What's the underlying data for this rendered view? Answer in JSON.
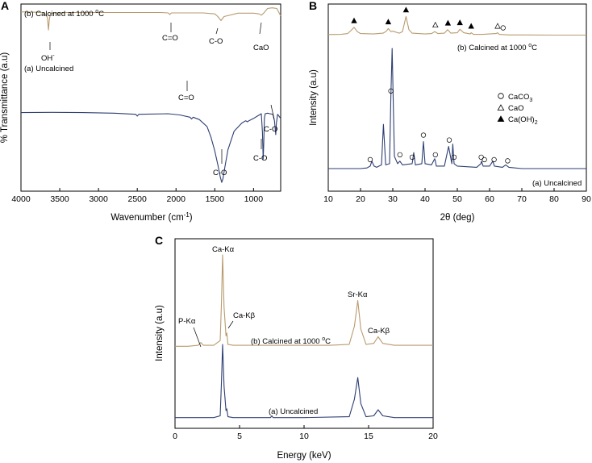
{
  "colors": {
    "calcined": "#b89b6e",
    "uncalcined": "#2e3f73"
  },
  "chart_data": [
    {
      "panel": "A",
      "type": "line",
      "xlabel": "Wavenumber (cm",
      "xlabel_sup": "-1",
      "xlabel_end": ")",
      "ylabel": "% Transmittance (a.u)",
      "xlim": [
        4000,
        650
      ],
      "x_reversed": true,
      "ylim": [
        0,
        1
      ],
      "xticks": [
        4000,
        3500,
        3000,
        2500,
        2000,
        1500,
        1000
      ],
      "yticks_shown": false,
      "series": [
        {
          "name": "(b) Calcined at 1000 ",
          "name_sup": "o",
          "name_end": "C",
          "color": "calcined",
          "x": [
            4000,
            3800,
            3700,
            3660,
            3645,
            3635,
            3620,
            3580,
            3400,
            3000,
            2600,
            2200,
            2100,
            2080,
            2060,
            1900,
            1650,
            1500,
            1460,
            1420,
            1380,
            1200,
            1000,
            930,
            900,
            870,
            820,
            760,
            700,
            650
          ],
          "y": [
            0.96,
            0.957,
            0.952,
            0.92,
            0.825,
            0.9,
            0.945,
            0.952,
            0.955,
            0.955,
            0.955,
            0.955,
            0.952,
            0.94,
            0.952,
            0.952,
            0.952,
            0.945,
            0.925,
            0.895,
            0.925,
            0.95,
            0.95,
            0.945,
            0.935,
            0.95,
            0.985,
            0.99,
            0.985,
            0.93
          ]
        },
        {
          "name": "(a) Uncalcined",
          "color": "uncalcined",
          "x": [
            4000,
            3600,
            3200,
            2800,
            2520,
            2500,
            2480,
            2100,
            1950,
            1820,
            1800,
            1780,
            1700,
            1600,
            1550,
            1500,
            1460,
            1430,
            1410,
            1395,
            1370,
            1330,
            1250,
            1150,
            1100,
            1080,
            1060,
            1000,
            950,
            900,
            885,
            876,
            868,
            860,
            850,
            820,
            790,
            750,
            730,
            713,
            705,
            690,
            650
          ],
          "y": [
            0.67,
            0.672,
            0.67,
            0.665,
            0.655,
            0.64,
            0.655,
            0.66,
            0.65,
            0.63,
            0.615,
            0.63,
            0.61,
            0.55,
            0.46,
            0.34,
            0.22,
            0.12,
            0.07,
            0.1,
            0.2,
            0.35,
            0.51,
            0.58,
            0.6,
            0.59,
            0.6,
            0.62,
            0.64,
            0.66,
            0.5,
            0.27,
            0.4,
            0.62,
            0.66,
            0.665,
            0.66,
            0.655,
            0.6,
            0.48,
            0.58,
            0.655,
            0.62
          ]
        }
      ],
      "annotations": [
        {
          "text": "OH",
          "sup": "-",
          "x": 3650
        },
        {
          "text": "C=O",
          "x": 2050
        },
        {
          "text": "C-O",
          "x": 1440
        },
        {
          "text": "CaO",
          "x": 870
        },
        {
          "text": "C=O",
          "x": 1800
        },
        {
          "text": "C-O",
          "x": 1400
        },
        {
          "text": "C-O",
          "x": 876
        },
        {
          "text": "C-O",
          "x": 713
        }
      ]
    },
    {
      "panel": "B",
      "type": "line",
      "xlabel": "2θ (deg)",
      "ylabel": "Intensity (a.u)",
      "xlim": [
        10,
        90
      ],
      "xticks": [
        10,
        20,
        30,
        40,
        50,
        60,
        70,
        80,
        90
      ],
      "yticks_shown": false,
      "series": [
        {
          "name": "(b) Calcined at 1000 ",
          "name_sup": "o",
          "name_end": "C",
          "color": "calcined",
          "x": [
            10,
            14,
            16,
            17,
            18,
            19,
            20,
            24,
            27,
            28,
            28.6,
            29.4,
            30,
            32,
            33,
            34.1,
            35,
            36,
            40,
            42,
            43,
            44,
            46,
            47,
            48,
            50,
            50.8,
            52,
            54,
            54.3,
            55,
            58,
            62,
            62.5,
            63,
            66,
            70,
            80,
            90
          ],
          "y": [
            0.05,
            0.06,
            0.1,
            0.25,
            0.42,
            0.2,
            0.1,
            0.08,
            0.12,
            0.22,
            0.36,
            0.2,
            0.22,
            0.12,
            0.2,
            0.98,
            0.3,
            0.12,
            0.08,
            0.1,
            0.2,
            0.1,
            0.12,
            0.3,
            0.12,
            0.14,
            0.32,
            0.14,
            0.08,
            0.14,
            0.06,
            0.06,
            0.1,
            0.14,
            0.06,
            0.03,
            0.03,
            0.02,
            0.02
          ]
        },
        {
          "name": "(a) Uncalcined",
          "color": "uncalcined",
          "x": [
            10,
            20,
            22,
            23,
            23.5,
            24.2,
            25,
            26.5,
            27.1,
            27.8,
            29,
            29.4,
            29.8,
            30.5,
            31.5,
            32.2,
            33,
            36,
            36.5,
            37,
            39,
            39.5,
            40,
            42,
            43,
            43.2,
            43.5,
            46,
            47.3,
            48.3,
            48.6,
            49,
            50,
            56,
            57.3,
            57.5,
            58,
            60,
            61,
            61.5,
            64,
            65,
            66,
            70,
            80,
            90
          ],
          "y": [
            0.02,
            0.02,
            0.025,
            0.04,
            0.08,
            0.04,
            0.03,
            0.05,
            0.38,
            0.05,
            0.06,
            0.6,
            1.0,
            0.12,
            0.06,
            0.08,
            0.05,
            0.06,
            0.15,
            0.05,
            0.06,
            0.24,
            0.06,
            0.05,
            0.1,
            0.08,
            0.04,
            0.04,
            0.2,
            0.06,
            0.22,
            0.06,
            0.04,
            0.03,
            0.06,
            0.08,
            0.04,
            0.04,
            0.08,
            0.04,
            0.03,
            0.05,
            0.03,
            0.02,
            0.02,
            0.02
          ]
        }
      ],
      "markers": {
        "filled_triangle": [
          18,
          28.6,
          34.1,
          47.1,
          50.8,
          54.3
        ],
        "open_triangle": [
          43.2,
          62.5
        ],
        "circle_b": [
          64.2
        ],
        "circle_a": [
          29.4,
          23,
          32.2,
          36,
          39.5,
          43.2,
          47.5,
          49,
          57.4,
          58.4,
          61.4,
          65.6
        ]
      },
      "legend": [
        {
          "symbol": "circle",
          "text": "CaCO",
          "sub": "3",
          "sub_end": ""
        },
        {
          "symbol": "open-triangle",
          "text": "CaO",
          "sub": "",
          "sub_end": ""
        },
        {
          "symbol": "filled-triangle",
          "text": "Ca(OH)",
          "sub": "2",
          "sub_end": ""
        }
      ],
      "legend_position": "right"
    },
    {
      "panel": "C",
      "type": "line",
      "xlabel": "Energy (keV)",
      "ylabel": "Intensity (a.u)",
      "xlim": [
        0,
        20
      ],
      "xticks": [
        0,
        5,
        10,
        15,
        20
      ],
      "yticks_shown": false,
      "series": [
        {
          "name": "(b) Calcined at 1000 ",
          "name_sup": "o",
          "name_end": "C",
          "color": "calcined",
          "x": [
            0,
            1,
            1.8,
            2.0,
            2.2,
            3.0,
            3.5,
            3.6,
            3.69,
            3.8,
            3.95,
            4.01,
            4.1,
            4.5,
            6,
            8,
            10,
            12,
            13.5,
            13.9,
            14.16,
            14.4,
            14.8,
            15.4,
            15.74,
            16.1,
            17,
            20
          ],
          "y": [
            0.04,
            0.04,
            0.05,
            0.08,
            0.05,
            0.05,
            0.1,
            0.5,
            1.0,
            0.45,
            0.15,
            0.18,
            0.06,
            0.05,
            0.05,
            0.05,
            0.05,
            0.05,
            0.06,
            0.25,
            0.52,
            0.22,
            0.06,
            0.07,
            0.14,
            0.07,
            0.05,
            0.05
          ]
        },
        {
          "name": "(a) Uncalcined",
          "color": "uncalcined",
          "x": [
            0,
            2,
            3.0,
            3.5,
            3.6,
            3.69,
            3.8,
            3.95,
            4.01,
            4.1,
            4.5,
            7.4,
            7.5,
            7.6,
            10,
            13.5,
            13.9,
            14.16,
            14.4,
            14.8,
            15.4,
            15.74,
            16.1,
            17,
            20
          ],
          "y": [
            0.04,
            0.04,
            0.04,
            0.06,
            0.45,
            0.88,
            0.4,
            0.12,
            0.14,
            0.05,
            0.04,
            0.04,
            0.06,
            0.04,
            0.04,
            0.05,
            0.25,
            0.5,
            0.2,
            0.05,
            0.06,
            0.13,
            0.06,
            0.04,
            0.04
          ]
        }
      ],
      "annotations": [
        {
          "text": "Ca-K",
          "greek": "α",
          "x": 3.69
        },
        {
          "text": "Ca-K",
          "greek": "β",
          "x": 4.01
        },
        {
          "text": "P-K",
          "greek": "α",
          "x": 2.0
        },
        {
          "text": "Sr-K",
          "greek": "α",
          "x": 14.16
        },
        {
          "text": "Ca-K",
          "greek": "β",
          "x": 15.74
        }
      ]
    }
  ]
}
